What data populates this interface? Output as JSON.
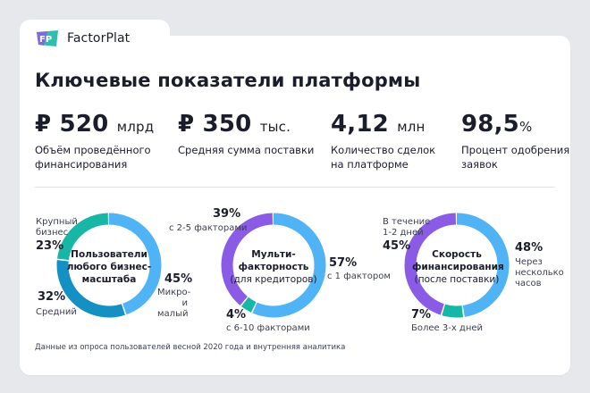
{
  "brand": {
    "name": "FactorPlat",
    "logo_letters": "FP"
  },
  "title": "Ключевые показатели платформы",
  "metrics": [
    {
      "value": "₽ 520",
      "unit": "млрд",
      "desc_1": "Объём проведённого",
      "desc_2": "финансирования"
    },
    {
      "value": "₽ 350",
      "unit": "тыс.",
      "desc_1": "Средняя сумма поставки",
      "desc_2": ""
    },
    {
      "value": "4,12",
      "unit": "млн",
      "desc_1": "Количество сделок",
      "desc_2": "на платформе"
    },
    {
      "value": "98,5",
      "unit": "%",
      "desc_1": "Процент одобрения",
      "desc_2": "заявок"
    }
  ],
  "chart_data": [
    {
      "type": "pie",
      "center_lines": [
        "Пользователи",
        "любого бизнес-",
        "масштаба"
      ],
      "slices": [
        {
          "label": "Микро- и малый",
          "value": 45,
          "color": "#4fb3f5"
        },
        {
          "label": "Средний",
          "value": 32,
          "color": "#1590c2"
        },
        {
          "label": "Крупный бизнес",
          "value": 23,
          "color": "#18b6a5"
        }
      ],
      "slice_labels": {
        "a_pct": "45%",
        "a_l1": "Микро-",
        "a_l2": "и малый",
        "b_pct": "32%",
        "b_l1": "Средний",
        "c_pct": "23%",
        "c_l1": "Крупный",
        "c_l2": "бизнес"
      }
    },
    {
      "type": "pie",
      "center_lines": [
        "Мульти-",
        "факторность",
        "(для кредиторов)"
      ],
      "slices": [
        {
          "label": "с 1 фактором",
          "value": 57,
          "color": "#4fb3f5"
        },
        {
          "label": "с 6-10 факторами",
          "value": 4,
          "color": "#18b6a5"
        },
        {
          "label": "с 2-5 факторами",
          "value": 39,
          "color": "#8a5ce6"
        }
      ],
      "slice_labels": {
        "a_pct": "57%",
        "a_l1": "с 1 фактором",
        "b_pct": "4%",
        "b_l1": "с 6-10 факторами",
        "c_pct": "39%",
        "c_l1": "с 2-5 факторами"
      }
    },
    {
      "type": "pie",
      "center_lines": [
        "Скорость",
        "финансирования",
        "(после поставки)"
      ],
      "slices": [
        {
          "label": "Через несколько часов",
          "value": 48,
          "color": "#4fb3f5"
        },
        {
          "label": "Более 3-х дней",
          "value": 7,
          "color": "#18b6a5"
        },
        {
          "label": "В течение 1-2 дней",
          "value": 45,
          "color": "#8a5ce6"
        }
      ],
      "slice_labels": {
        "a_pct": "48%",
        "a_l1": "Через",
        "a_l2": "несколько",
        "a_l3": "часов",
        "b_pct": "7%",
        "b_l1": "Более 3-х дней",
        "c_pct": "45%",
        "c_l1": "В течение",
        "c_l2": "1-2 дней"
      }
    }
  ],
  "footnote": "Данные из опроса пользователей весной 2020 года и внутренняя аналитика"
}
